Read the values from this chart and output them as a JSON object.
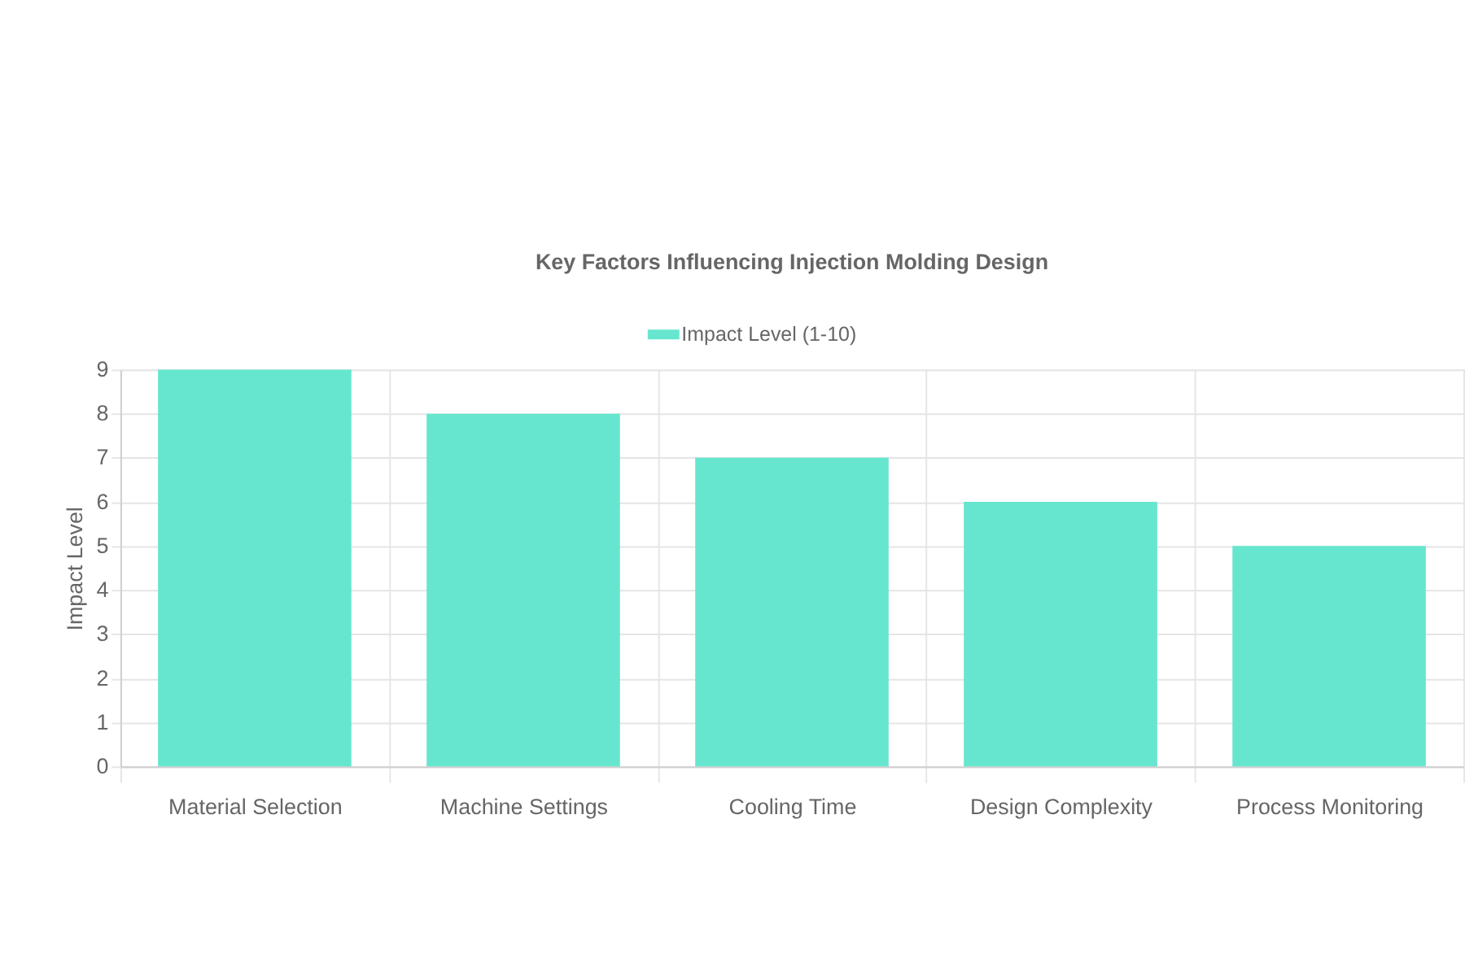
{
  "chart_data": {
    "type": "bar",
    "title": "Key Factors Influencing Injection Molding Design",
    "ylabel": "Impact Level",
    "categories": [
      "Material Selection",
      "Machine Settings",
      "Cooling Time",
      "Design Complexity",
      "Process Monitoring"
    ],
    "series": [
      {
        "name": "Impact Level (1-10)",
        "color": "#66e6cf",
        "values": [
          9,
          8,
          7,
          6,
          5
        ]
      }
    ],
    "ylim": [
      0,
      9
    ],
    "yticks": [
      0,
      1,
      2,
      3,
      4,
      5,
      6,
      7,
      8,
      9
    ],
    "grid": true,
    "legend": "top"
  }
}
